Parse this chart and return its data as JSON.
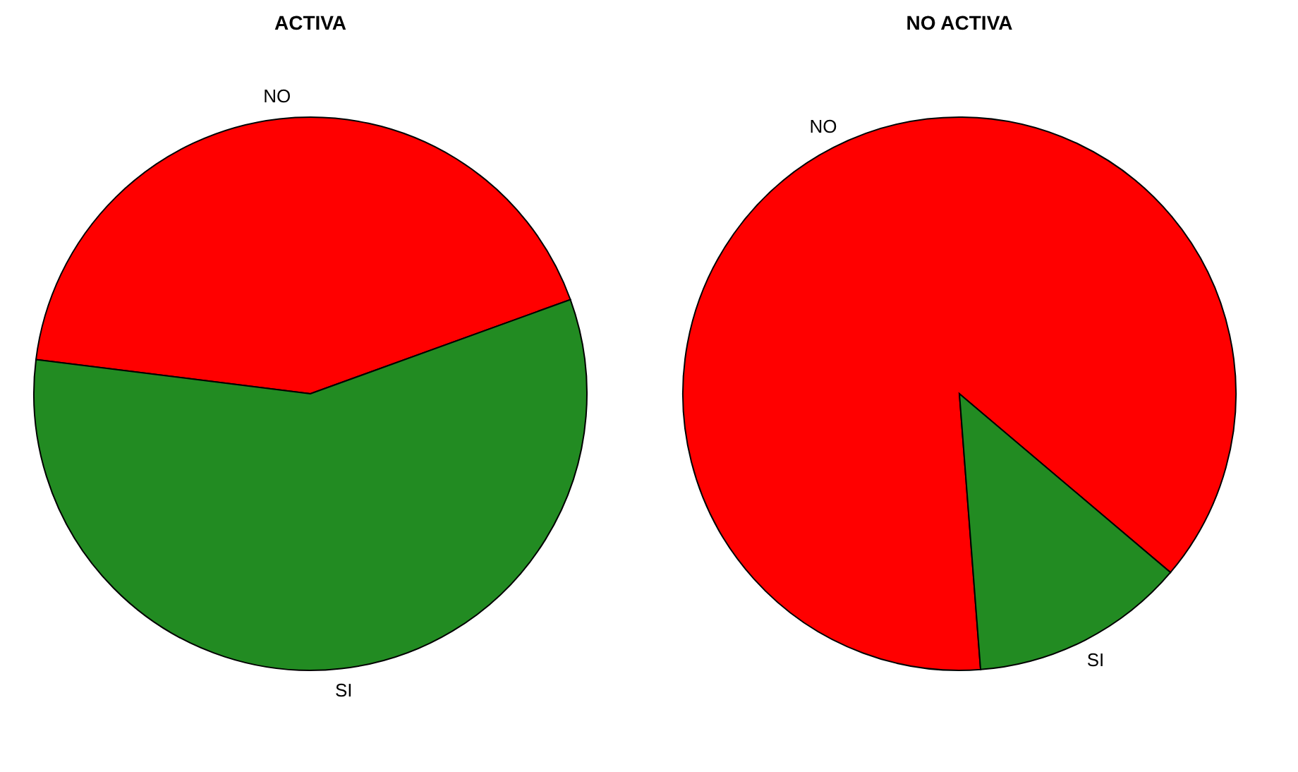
{
  "chart_data": [
    {
      "type": "pie",
      "title": "ACTIVA",
      "categories": [
        "NO",
        "SI"
      ],
      "values": [
        42.5,
        57.5
      ],
      "colors": [
        "#ff0000",
        "#228b22"
      ]
    },
    {
      "type": "pie",
      "title": "NO ACTIVA",
      "categories": [
        "NO",
        "SI"
      ],
      "values": [
        87.4,
        12.6
      ],
      "colors": [
        "#ff0000",
        "#228b22"
      ]
    }
  ]
}
